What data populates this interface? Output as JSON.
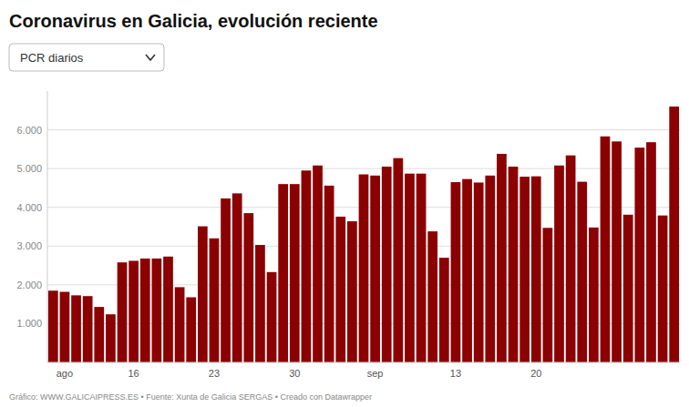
{
  "chart_data": {
    "type": "bar",
    "title": "Coronavirus en Galicia, evolución reciente",
    "subtitle": "PCR diarios",
    "annotations": [
      "Gráfico: WWW.GALICAIPRESS.ES • Fuente: Xunta de Galicia SERGAS • Creado con Datawrapper"
    ],
    "color": "#8B0000",
    "categories": [
      null,
      "ago",
      null,
      null,
      null,
      null,
      null,
      "16",
      null,
      null,
      null,
      null,
      null,
      null,
      "23",
      null,
      null,
      null,
      null,
      null,
      null,
      "30",
      null,
      null,
      null,
      null,
      null,
      null,
      "sep",
      null,
      null,
      null,
      null,
      null,
      null,
      "13",
      null,
      null,
      null,
      null,
      null,
      null,
      "20",
      null,
      null,
      null,
      null,
      null,
      null,
      null,
      null,
      null,
      null,
      null,
      null
    ],
    "values": [
      1850,
      1820,
      1730,
      1710,
      1430,
      1240,
      2580,
      2620,
      2680,
      2680,
      2730,
      1940,
      1680,
      3510,
      3200,
      4230,
      4360,
      3850,
      3030,
      2330,
      4600,
      4600,
      4950,
      5080,
      4560,
      3760,
      3640,
      4850,
      4820,
      5050,
      5270,
      4870,
      4870,
      3380,
      2700,
      4650,
      4730,
      4640,
      4820,
      5380,
      5050,
      4790,
      4800,
      3470,
      5080,
      5340,
      4660,
      3480,
      5830,
      5700,
      3810,
      5540,
      5680,
      3790,
      6600
    ],
    "ylim": [
      0,
      7000
    ],
    "yticks": [
      {
        "value": 1000,
        "label": "1.000"
      },
      {
        "value": 2000,
        "label": "2.000"
      },
      {
        "value": 3000,
        "label": "3.000"
      },
      {
        "value": 4000,
        "label": "4.000"
      },
      {
        "value": 5000,
        "label": "5.000"
      },
      {
        "value": 6000,
        "label": "6.000"
      }
    ],
    "grid": true
  }
}
